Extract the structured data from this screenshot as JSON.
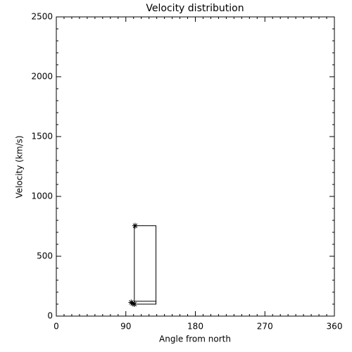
{
  "chart_data": {
    "type": "scatter",
    "title": "Velocity distribution",
    "xlabel": "Angle from north",
    "ylabel": "Velocity (km/s)",
    "x": [
      102,
      97,
      99,
      101
    ],
    "y": [
      755,
      115,
      105,
      100
    ],
    "color": "#000000",
    "boxes": [
      {
        "x": [
          101,
          129
        ],
        "y": [
          100,
          755
        ]
      },
      {
        "x": [
          101,
          129
        ],
        "y": [
          100,
          124
        ]
      }
    ],
    "xlim": [
      0,
      360
    ],
    "xticks": [
      0,
      90,
      180,
      270,
      360
    ],
    "x_minor_ticks": 9,
    "ylim": [
      0,
      2500
    ],
    "yticks": [
      0,
      500,
      1000,
      1500,
      2000,
      2500
    ],
    "y_minor_ticks": 5
  }
}
